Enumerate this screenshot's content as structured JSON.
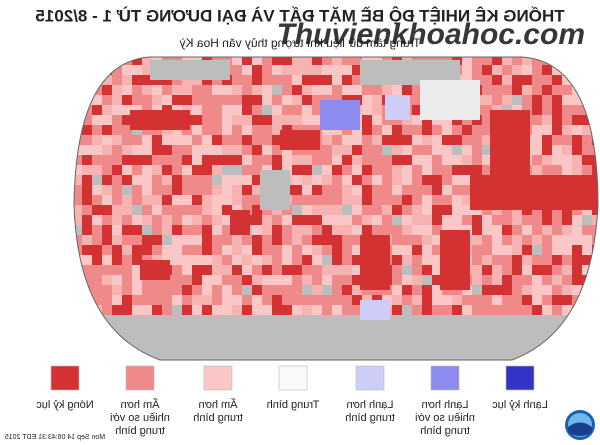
{
  "header": {
    "title": "THỐNG KÊ NHIỆT ĐỘ BỀ MẶT ĐẤT VÀ ĐẠI DƯƠNG TỪ 1 - 8/2015",
    "subtitle": "Trung tâm dữ liệu khí tượng thủy văn Hoa Kỳ"
  },
  "watermark": "Thuvienkhoahoc.com",
  "legend": [
    {
      "lines": [
        "Nóng kỷ lục"
      ],
      "color": "#d43232"
    },
    {
      "lines": [
        "Ấm hơn",
        "nhiều so với",
        "trung bình"
      ],
      "color": "#f08a8a"
    },
    {
      "lines": [
        "Ấm hơn",
        "trung bình"
      ],
      "color": "#fbc6c6"
    },
    {
      "lines": [
        "Trung bình"
      ],
      "color": "#fafafa"
    },
    {
      "lines": [
        "Lạnh hơn",
        "trung bình"
      ],
      "color": "#cdcdf7"
    },
    {
      "lines": [
        "Lạnh hơn",
        "nhiều so với",
        "trung bình"
      ],
      "color": "#8c8cf0"
    },
    {
      "lines": [
        "Lạnh kỷ lục"
      ],
      "color": "#3434c8"
    }
  ],
  "timestamp": "Mon Sep 14 06:43:31 EDT 2015"
}
